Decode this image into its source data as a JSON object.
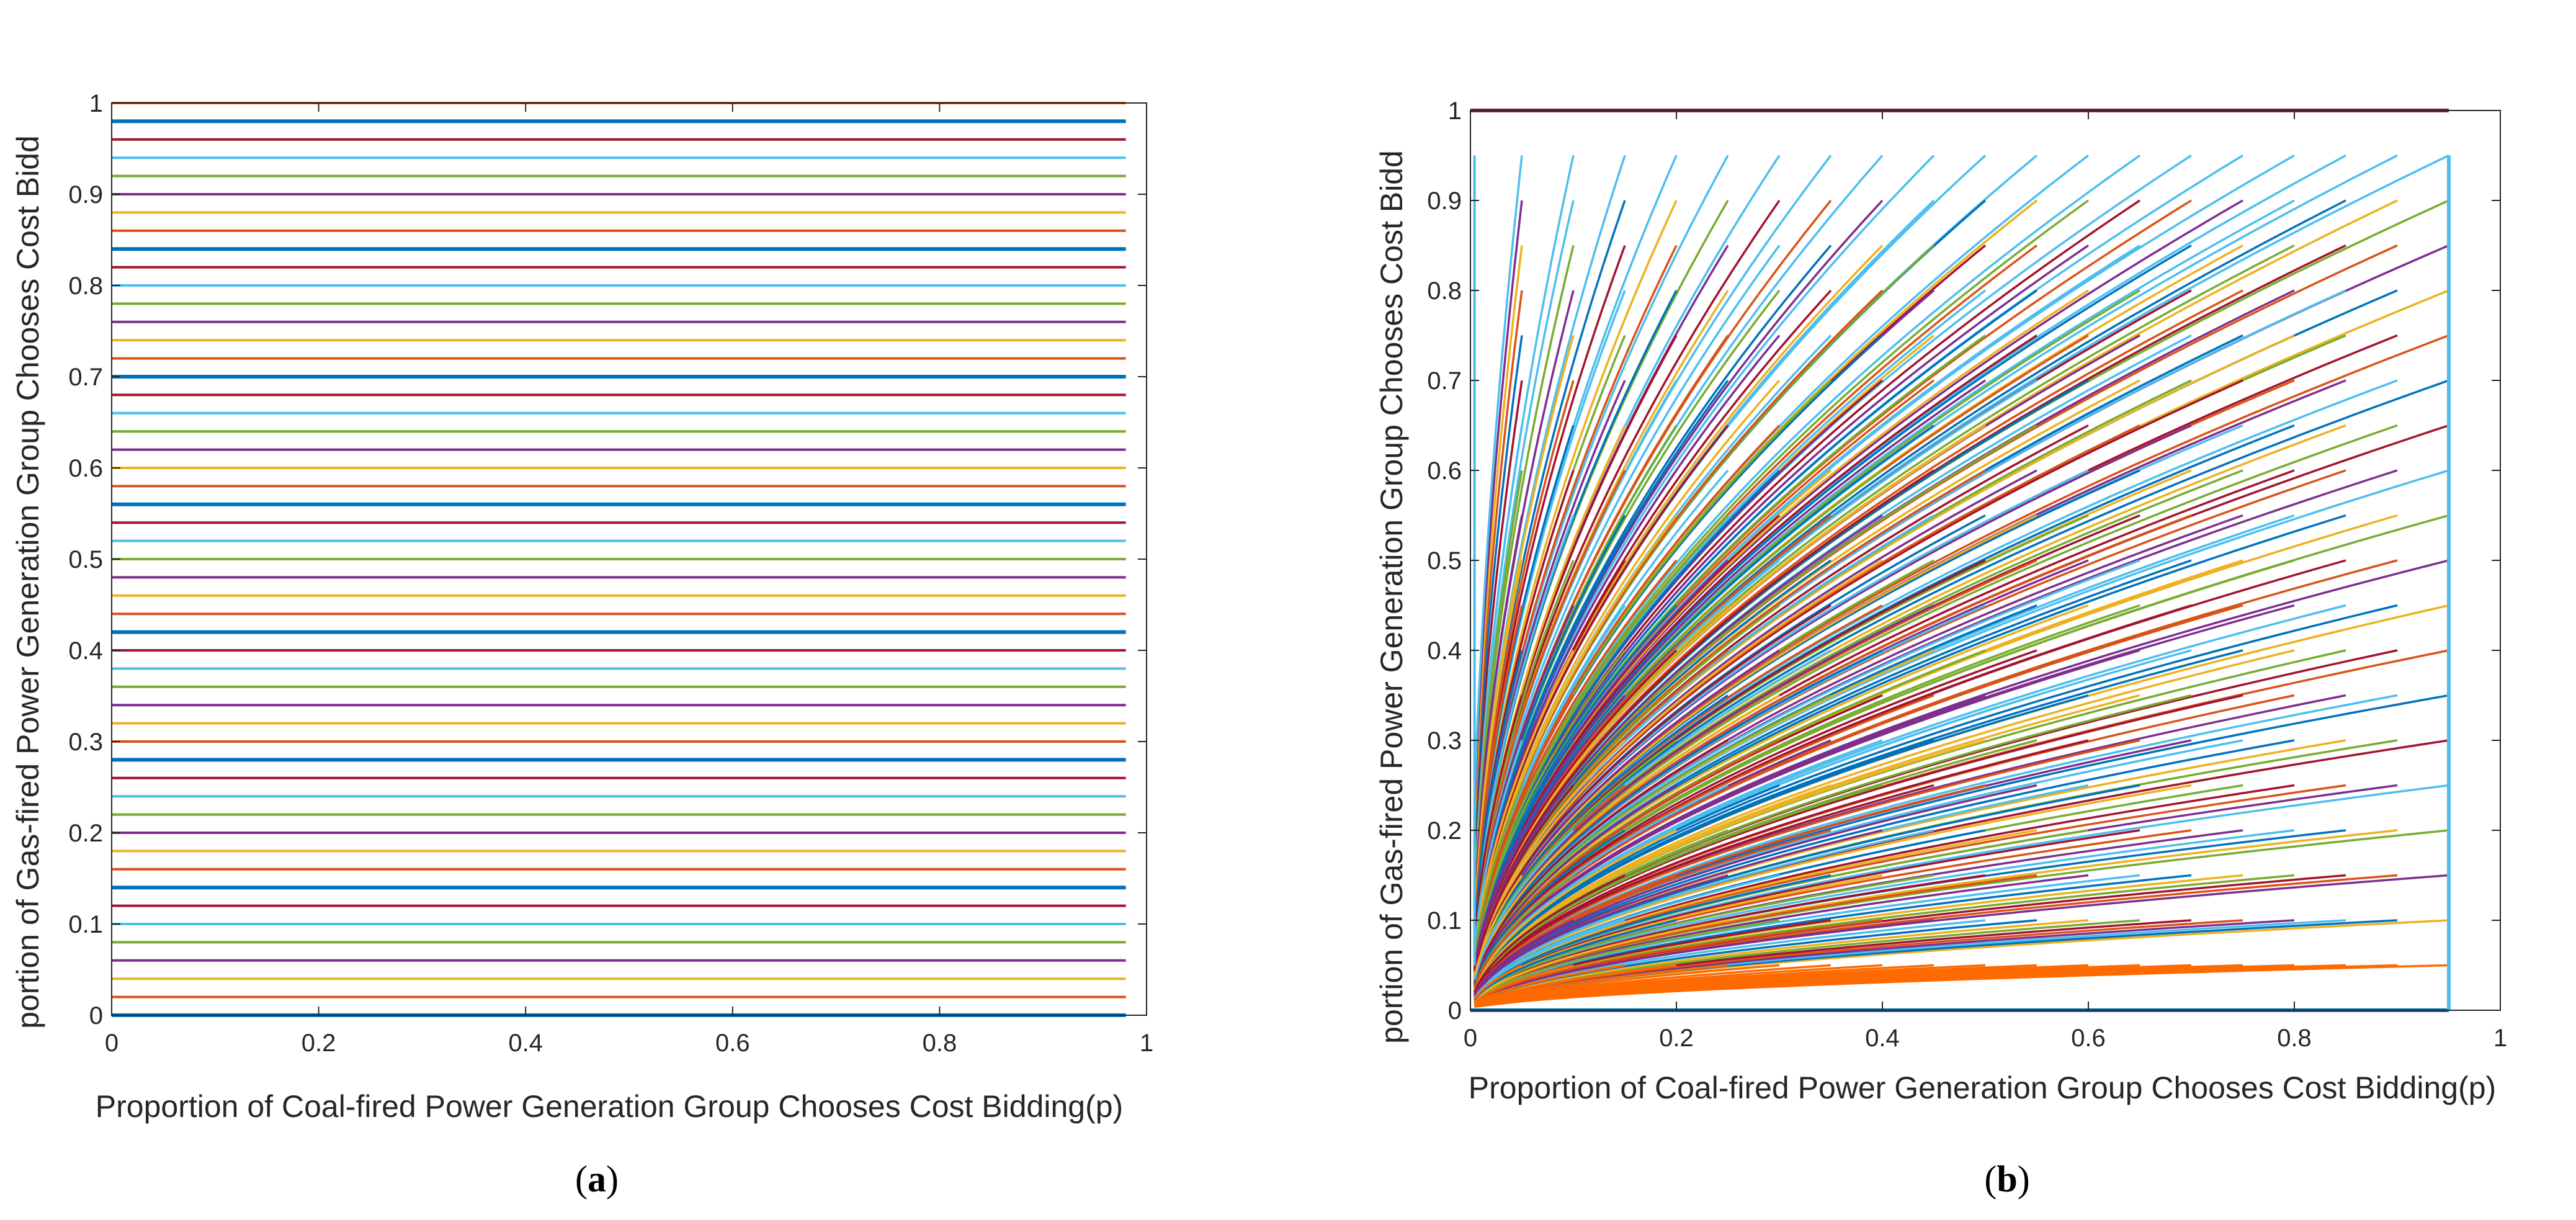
{
  "palette": [
    "#0072BD",
    "#D95319",
    "#EDB120",
    "#7E2F8E",
    "#77AC30",
    "#4DBEEE",
    "#A2142F"
  ],
  "panels": [
    {
      "caption_open": "(",
      "caption_letter": "a",
      "caption_close": ")",
      "chart_data": {
        "type": "line",
        "title": "",
        "xlabel": "Proportion of Coal-fired Power Generation Group Chooses Cost Bidding(p)",
        "ylabel": "portion of Gas-fired Power Generation Group Chooses Cost Bidd",
        "xlim": [
          0,
          1
        ],
        "ylim": [
          0,
          1
        ],
        "xticks": [
          "0",
          "0.2",
          "0.4",
          "0.6",
          "0.8",
          "1"
        ],
        "yticks": [
          "0",
          "0.1",
          "0.2",
          "0.3",
          "0.4",
          "0.5",
          "0.6",
          "0.7",
          "0.8",
          "0.9",
          "1"
        ],
        "description": "51 horizontal trajectories (q constant over p) for initial q = 0, 0.02, ..., 1.00, each spanning p = 0 to 0.98",
        "series_x_range": [
          0,
          0.98
        ],
        "series_y_values": [
          0,
          0.02,
          0.04,
          0.06,
          0.08,
          0.1,
          0.12,
          0.14,
          0.16,
          0.18,
          0.2,
          0.22,
          0.24,
          0.26,
          0.28,
          0.3,
          0.32,
          0.34,
          0.36,
          0.38,
          0.4,
          0.42,
          0.44,
          0.46,
          0.48,
          0.5,
          0.52,
          0.54,
          0.56,
          0.58,
          0.6,
          0.62,
          0.64,
          0.66,
          0.68,
          0.7,
          0.72,
          0.74,
          0.76,
          0.78,
          0.8,
          0.82,
          0.84,
          0.86,
          0.88,
          0.9,
          0.92,
          0.94,
          0.96,
          0.98,
          1.0
        ]
      }
    },
    {
      "caption_open": "(",
      "caption_letter": "b",
      "caption_close": ")",
      "chart_data": {
        "type": "line",
        "title": "",
        "xlabel": "Proportion of Coal-fired Power Generation Group Chooses Cost Bidding(p)",
        "ylabel": "portion of Gas-fired Power Generation Group Chooses Cost Bidd",
        "xlim": [
          0,
          1
        ],
        "ylim": [
          0,
          1
        ],
        "xticks": [
          "0",
          "0.2",
          "0.4",
          "0.6",
          "0.8",
          "1"
        ],
        "yticks": [
          "0",
          "0.1",
          "0.2",
          "0.3",
          "0.4",
          "0.5",
          "0.6",
          "0.7",
          "0.8",
          "0.9",
          "1"
        ],
        "description": "Family of concave trajectories q = qEnd * (p / pEnd)^k starting near (0,0); line at q = 1 and q = 0 across, vertical segment at p = 0.95",
        "families": [
          {
            "p_end": 0.95,
            "q_end_values": [
              0,
              0.05,
              0.1,
              0.15,
              0.2,
              0.25,
              0.3,
              0.35,
              0.4,
              0.45,
              0.5,
              0.55,
              0.6,
              0.65,
              0.7,
              0.75,
              0.8,
              0.85,
              0.9,
              0.95
            ]
          },
          {
            "p_end": 0.9,
            "q_end_values": [
              0.05,
              0.1,
              0.15,
              0.2,
              0.25,
              0.3,
              0.35,
              0.4,
              0.45,
              0.5,
              0.55,
              0.6,
              0.65,
              0.7,
              0.75,
              0.8,
              0.85,
              0.9,
              0.95
            ]
          },
          {
            "p_end": 0.85,
            "q_end_values": [
              0.05,
              0.1,
              0.15,
              0.2,
              0.25,
              0.3,
              0.35,
              0.4,
              0.45,
              0.5,
              0.55,
              0.6,
              0.65,
              0.7,
              0.75,
              0.8,
              0.85,
              0.9,
              0.95
            ]
          },
          {
            "p_end": 0.8,
            "q_end_values": [
              0.05,
              0.1,
              0.15,
              0.2,
              0.25,
              0.3,
              0.35,
              0.4,
              0.45,
              0.5,
              0.55,
              0.6,
              0.65,
              0.7,
              0.75,
              0.8,
              0.85,
              0.9,
              0.95
            ]
          },
          {
            "p_end": 0.75,
            "q_end_values": [
              0.05,
              0.1,
              0.15,
              0.2,
              0.25,
              0.3,
              0.35,
              0.4,
              0.45,
              0.5,
              0.55,
              0.6,
              0.65,
              0.7,
              0.75,
              0.8,
              0.85,
              0.9,
              0.95
            ]
          },
          {
            "p_end": 0.7,
            "q_end_values": [
              0.05,
              0.1,
              0.15,
              0.2,
              0.25,
              0.3,
              0.35,
              0.4,
              0.45,
              0.5,
              0.55,
              0.6,
              0.65,
              0.7,
              0.75,
              0.8,
              0.85,
              0.9,
              0.95
            ]
          },
          {
            "p_end": 0.65,
            "q_end_values": [
              0.05,
              0.1,
              0.15,
              0.2,
              0.25,
              0.3,
              0.35,
              0.4,
              0.45,
              0.5,
              0.55,
              0.6,
              0.65,
              0.7,
              0.75,
              0.8,
              0.85,
              0.9,
              0.95
            ]
          },
          {
            "p_end": 0.6,
            "q_end_values": [
              0.05,
              0.1,
              0.15,
              0.2,
              0.25,
              0.3,
              0.35,
              0.4,
              0.45,
              0.5,
              0.55,
              0.6,
              0.65,
              0.7,
              0.75,
              0.8,
              0.85,
              0.9,
              0.95
            ]
          },
          {
            "p_end": 0.55,
            "q_end_values": [
              0.05,
              0.1,
              0.15,
              0.2,
              0.25,
              0.3,
              0.35,
              0.4,
              0.45,
              0.5,
              0.55,
              0.6,
              0.65,
              0.7,
              0.75,
              0.8,
              0.85,
              0.9,
              0.95
            ]
          },
          {
            "p_end": 0.5,
            "q_end_values": [
              0.05,
              0.1,
              0.15,
              0.2,
              0.25,
              0.3,
              0.35,
              0.4,
              0.45,
              0.5,
              0.55,
              0.6,
              0.65,
              0.7,
              0.75,
              0.8,
              0.85,
              0.9,
              0.95
            ]
          },
          {
            "p_end": 0.45,
            "q_end_values": [
              0.05,
              0.1,
              0.15,
              0.2,
              0.25,
              0.3,
              0.35,
              0.4,
              0.45,
              0.5,
              0.55,
              0.6,
              0.65,
              0.7,
              0.75,
              0.8,
              0.85,
              0.9,
              0.95
            ]
          },
          {
            "p_end": 0.4,
            "q_end_values": [
              0.05,
              0.1,
              0.15,
              0.2,
              0.25,
              0.3,
              0.35,
              0.4,
              0.45,
              0.5,
              0.55,
              0.6,
              0.65,
              0.7,
              0.75,
              0.8,
              0.85,
              0.9,
              0.95
            ]
          },
          {
            "p_end": 0.35,
            "q_end_values": [
              0.05,
              0.1,
              0.15,
              0.2,
              0.25,
              0.3,
              0.35,
              0.4,
              0.45,
              0.5,
              0.55,
              0.6,
              0.65,
              0.7,
              0.75,
              0.8,
              0.85,
              0.9,
              0.95
            ]
          },
          {
            "p_end": 0.3,
            "q_end_values": [
              0.05,
              0.1,
              0.15,
              0.2,
              0.25,
              0.3,
              0.35,
              0.4,
              0.45,
              0.5,
              0.55,
              0.6,
              0.65,
              0.7,
              0.75,
              0.8,
              0.85,
              0.9,
              0.95
            ]
          },
          {
            "p_end": 0.25,
            "q_end_values": [
              0.05,
              0.1,
              0.15,
              0.2,
              0.25,
              0.3,
              0.35,
              0.4,
              0.45,
              0.5,
              0.55,
              0.6,
              0.65,
              0.7,
              0.75,
              0.8,
              0.85,
              0.9,
              0.95
            ]
          },
          {
            "p_end": 0.2,
            "q_end_values": [
              0.05,
              0.1,
              0.15,
              0.2,
              0.25,
              0.3,
              0.35,
              0.4,
              0.45,
              0.5,
              0.55,
              0.6,
              0.65,
              0.7,
              0.75,
              0.8,
              0.85,
              0.9,
              0.95
            ]
          },
          {
            "p_end": 0.15,
            "q_end_values": [
              0.05,
              0.1,
              0.15,
              0.2,
              0.25,
              0.3,
              0.35,
              0.4,
              0.45,
              0.5,
              0.55,
              0.6,
              0.65,
              0.7,
              0.75,
              0.8,
              0.85,
              0.9,
              0.95
            ]
          },
          {
            "p_end": 0.1,
            "q_end_values": [
              0.05,
              0.1,
              0.15,
              0.2,
              0.25,
              0.3,
              0.35,
              0.4,
              0.45,
              0.5,
              0.55,
              0.6,
              0.65,
              0.7,
              0.75,
              0.8,
              0.85,
              0.9,
              0.95
            ]
          },
          {
            "p_end": 0.05,
            "q_end_values": [
              0.05,
              0.1,
              0.15,
              0.2,
              0.25,
              0.3,
              0.35,
              0.4,
              0.45,
              0.5,
              0.55,
              0.6,
              0.65,
              0.7,
              0.75,
              0.8,
              0.85,
              0.9,
              0.95
            ]
          }
        ],
        "horizontal_lines": [
          {
            "q": 1.0,
            "p_range": [
              0,
              0.95
            ],
            "color": "#A2142F"
          },
          {
            "q": 0.0,
            "p_range": [
              0,
              0.95
            ],
            "color": "#0072BD"
          }
        ],
        "vertical_line": {
          "p": 0.95,
          "q_range": [
            0,
            0.95
          ],
          "color": "#4DBEEE"
        }
      }
    }
  ]
}
